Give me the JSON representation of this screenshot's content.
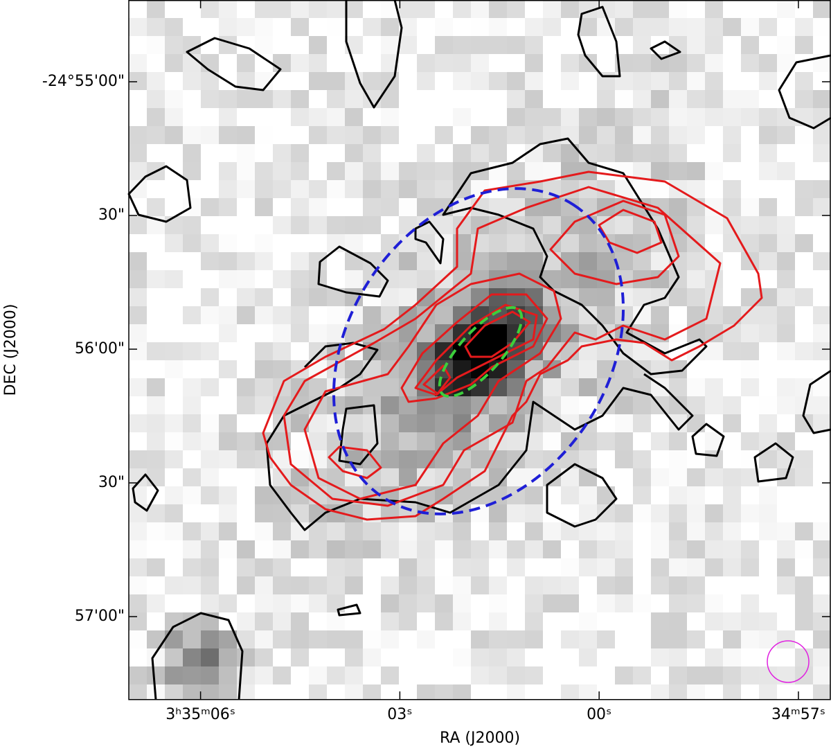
{
  "chart_data": {
    "type": "image",
    "xlabel": "RA (J2000)",
    "ylabel": "DEC (J2000)",
    "xlim": [
      2107.08,
      2096.52
    ],
    "xticks": [
      {
        "value": 2106,
        "label": "3ʰ35ᵐ06ˢ"
      },
      {
        "value": 2103,
        "label": "03ˢ"
      },
      {
        "value": 2100,
        "label": "00ˢ"
      },
      {
        "value": 2097,
        "label": "34ᵐ57ˢ"
      }
    ],
    "ylim": [
      -89838.65,
      -89681.66
    ],
    "yticks": [
      {
        "value": -89700,
        "label": "-24°55'00\""
      },
      {
        "value": -89730,
        "label": "30\""
      },
      {
        "value": -89760,
        "label": "56'00\""
      },
      {
        "value": -89790,
        "label": "30\""
      },
      {
        "value": -89820,
        "label": "57'00\""
      }
    ]
  }
}
